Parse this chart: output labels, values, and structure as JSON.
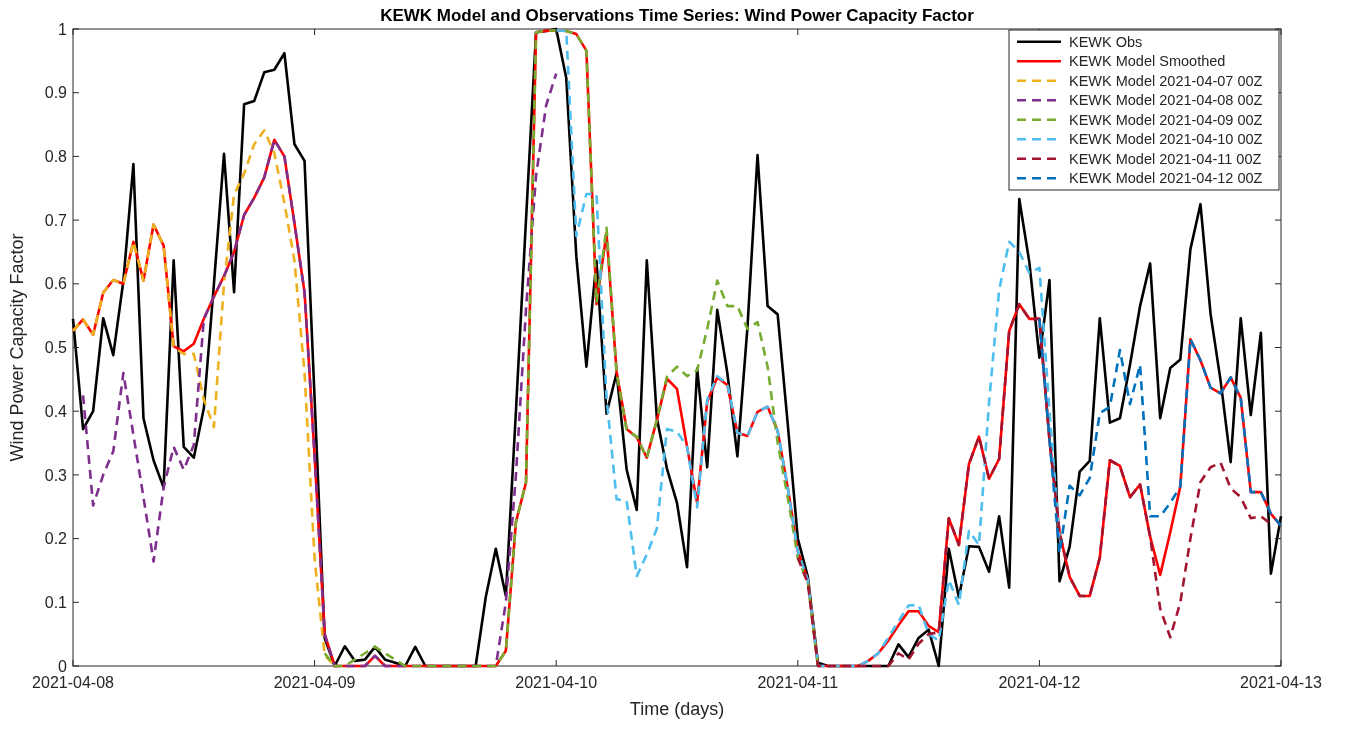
{
  "chart_data": {
    "type": "line",
    "title": "KEWK Model and Observations Time Series: Wind Power Capacity Factor",
    "xlabel": "Time (days)",
    "ylabel": "Wind Power Capacity Factor",
    "x": [
      "2021-04-08T00:00",
      "2021-04-08T01:00",
      "2021-04-08T02:00",
      "2021-04-08T03:00",
      "2021-04-08T04:00",
      "2021-04-08T05:00",
      "2021-04-08T06:00",
      "2021-04-08T07:00",
      "2021-04-08T08:00",
      "2021-04-08T09:00",
      "2021-04-08T10:00",
      "2021-04-08T11:00",
      "2021-04-08T12:00",
      "2021-04-08T13:00",
      "2021-04-08T14:00",
      "2021-04-08T15:00",
      "2021-04-08T16:00",
      "2021-04-08T17:00",
      "2021-04-08T18:00",
      "2021-04-08T19:00",
      "2021-04-08T20:00",
      "2021-04-08T21:00",
      "2021-04-08T22:00",
      "2021-04-08T23:00",
      "2021-04-09T00:00",
      "2021-04-09T01:00",
      "2021-04-09T02:00",
      "2021-04-09T03:00",
      "2021-04-09T04:00",
      "2021-04-09T05:00",
      "2021-04-09T06:00",
      "2021-04-09T07:00",
      "2021-04-09T08:00",
      "2021-04-09T09:00",
      "2021-04-09T10:00",
      "2021-04-09T11:00",
      "2021-04-09T12:00",
      "2021-04-09T13:00",
      "2021-04-09T14:00",
      "2021-04-09T15:00",
      "2021-04-09T16:00",
      "2021-04-09T17:00",
      "2021-04-09T18:00",
      "2021-04-09T19:00",
      "2021-04-09T20:00",
      "2021-04-09T21:00",
      "2021-04-09T22:00",
      "2021-04-09T23:00",
      "2021-04-10T00:00",
      "2021-04-10T01:00",
      "2021-04-10T02:00",
      "2021-04-10T03:00",
      "2021-04-10T04:00",
      "2021-04-10T05:00",
      "2021-04-10T06:00",
      "2021-04-10T07:00",
      "2021-04-10T08:00",
      "2021-04-10T09:00",
      "2021-04-10T10:00",
      "2021-04-10T11:00",
      "2021-04-10T12:00",
      "2021-04-10T13:00",
      "2021-04-10T14:00",
      "2021-04-10T15:00",
      "2021-04-10T16:00",
      "2021-04-10T17:00",
      "2021-04-10T18:00",
      "2021-04-10T19:00",
      "2021-04-10T20:00",
      "2021-04-10T21:00",
      "2021-04-10T22:00",
      "2021-04-10T23:00",
      "2021-04-11T00:00",
      "2021-04-11T01:00",
      "2021-04-11T02:00",
      "2021-04-11T03:00",
      "2021-04-11T04:00",
      "2021-04-11T05:00",
      "2021-04-11T06:00",
      "2021-04-11T07:00",
      "2021-04-11T08:00",
      "2021-04-11T09:00",
      "2021-04-11T10:00",
      "2021-04-11T11:00",
      "2021-04-11T12:00",
      "2021-04-11T13:00",
      "2021-04-11T14:00",
      "2021-04-11T15:00",
      "2021-04-11T16:00",
      "2021-04-11T17:00",
      "2021-04-11T18:00",
      "2021-04-11T19:00",
      "2021-04-11T20:00",
      "2021-04-11T21:00",
      "2021-04-11T22:00",
      "2021-04-11T23:00",
      "2021-04-12T00:00",
      "2021-04-12T01:00",
      "2021-04-12T02:00",
      "2021-04-12T03:00",
      "2021-04-12T04:00",
      "2021-04-12T05:00",
      "2021-04-12T06:00",
      "2021-04-12T07:00",
      "2021-04-12T08:00",
      "2021-04-12T09:00",
      "2021-04-12T10:00",
      "2021-04-12T11:00",
      "2021-04-12T12:00",
      "2021-04-12T13:00",
      "2021-04-12T14:00",
      "2021-04-12T15:00",
      "2021-04-12T16:00",
      "2021-04-12T17:00",
      "2021-04-12T18:00",
      "2021-04-12T19:00",
      "2021-04-12T20:00",
      "2021-04-12T21:00",
      "2021-04-12T22:00",
      "2021-04-12T23:00",
      "2021-04-13T00:00"
    ],
    "series": [
      {
        "name": "KEWK Obs",
        "color": "#000000",
        "line_style": "solid",
        "values": [
          0.545,
          0.372,
          0.4,
          0.546,
          0.488,
          0.604,
          0.788,
          0.389,
          0.323,
          0.28,
          0.637,
          0.344,
          0.327,
          0.405,
          0.6,
          0.804,
          0.587,
          0.882,
          0.887,
          0.932,
          0.936,
          0.962,
          0.819,
          0.793,
          0.42,
          0.044,
          0,
          0.031,
          0.008,
          0.01,
          0.03,
          0.01,
          0.005,
          0,
          0.03,
          0,
          0,
          0,
          0,
          0,
          0,
          0.108,
          0.184,
          0.11,
          0.4,
          0.7,
          0.995,
          0.997,
          1,
          0.923,
          0.643,
          0.47,
          0.636,
          0.396,
          0.46,
          0.308,
          0.245,
          0.637,
          0.389,
          0.31,
          0.256,
          0.155,
          0.467,
          0.312,
          0.559,
          0.46,
          0.329,
          0.532,
          0.802,
          0.565,
          0.552,
          0.38,
          0.2,
          0.14,
          0.005,
          0,
          0,
          0,
          0,
          0,
          0,
          0,
          0.034,
          0.014,
          0.044,
          0.057,
          0,
          0.184,
          0.108,
          0.188,
          0.187,
          0.148,
          0.235,
          0.123,
          0.733,
          0.634,
          0.484,
          0.606,
          0.133,
          0.187,
          0.305,
          0.322,
          0.546,
          0.382,
          0.389,
          0.473,
          0.565,
          0.632,
          0.389,
          0.468,
          0.481,
          0.654,
          0.725,
          0.553,
          0.448,
          0.32,
          0.546,
          0.394,
          0.523,
          0.145,
          0.235
        ]
      },
      {
        "name": "KEWK Model Smoothed",
        "color": "#ff0000",
        "line_style": "solid",
        "values": [
          0.526,
          0.544,
          0.52,
          0.586,
          0.606,
          0.6,
          0.666,
          0.605,
          0.693,
          0.66,
          0.502,
          0.494,
          0.506,
          0.545,
          0.58,
          0.612,
          0.65,
          0.708,
          0.735,
          0.767,
          0.826,
          0.8,
          0.695,
          0.587,
          0.33,
          0.05,
          0,
          0,
          0,
          0,
          0.016,
          0,
          0,
          0,
          0,
          0,
          0,
          0,
          0,
          0,
          0,
          0,
          0,
          0.024,
          0.226,
          0.288,
          0.995,
          0.997,
          0.998,
          0.997,
          0.992,
          0.966,
          0.568,
          0.679,
          0.462,
          0.372,
          0.359,
          0.327,
          0.386,
          0.451,
          0.435,
          0.344,
          0.256,
          0.415,
          0.453,
          0.441,
          0.366,
          0.361,
          0.399,
          0.407,
          0.369,
          0.28,
          0.18,
          0.135,
          0,
          0,
          0,
          0,
          0,
          0.008,
          0.02,
          0.04,
          0.064,
          0.086,
          0.086,
          0.063,
          0.053,
          0.232,
          0.19,
          0.317,
          0.36,
          0.294,
          0.325,
          0.526,
          0.568,
          0.545,
          0.545,
          0.355,
          0.21,
          0.14,
          0.11,
          0.11,
          0.17,
          0.323,
          0.314,
          0.265,
          0.285,
          0.203,
          0.143,
          0.21,
          0.282,
          0.513,
          0.48,
          0.437,
          0.428,
          0.453,
          0.421,
          0.273,
          0.273,
          0.239,
          0.22
        ]
      },
      {
        "name": "KEWK Model 2021-04-07 00Z",
        "color": "#edb120",
        "line_style": "dashed",
        "values": [
          0.526,
          0.544,
          0.52,
          0.586,
          0.606,
          0.6,
          0.666,
          0.605,
          0.693,
          0.66,
          0.5,
          0.49,
          0.49,
          0.418,
          0.375,
          0.6,
          0.74,
          0.773,
          0.819,
          0.841,
          0.805,
          0.727,
          0.636,
          0.46,
          0.168,
          0.017,
          0,
          null,
          null,
          null,
          null,
          null,
          null,
          null,
          null,
          null,
          null,
          null,
          null,
          null,
          null,
          null,
          null,
          null,
          null,
          null,
          null,
          null,
          null,
          null,
          null,
          null,
          null,
          null,
          null,
          null,
          null,
          null,
          null,
          null,
          null,
          null,
          null,
          null,
          null,
          null,
          null,
          null,
          null,
          null,
          null,
          null,
          null,
          null,
          null,
          null,
          null,
          null,
          null,
          null,
          null,
          null,
          null,
          null,
          null,
          null,
          null,
          null,
          null,
          null,
          null,
          null,
          null,
          null,
          null,
          null,
          null,
          null,
          null,
          null,
          null,
          null,
          null,
          null,
          null,
          null,
          null,
          null,
          null,
          null,
          null,
          null,
          null,
          null,
          null,
          null,
          null,
          null,
          null,
          null,
          null
        ]
      },
      {
        "name": "KEWK Model 2021-04-08 00Z",
        "color": "#7e2f8e",
        "line_style": "dashed",
        "values": [
          null,
          0.425,
          0.252,
          0.3,
          0.337,
          0.46,
          0.363,
          0.265,
          0.164,
          0.28,
          0.344,
          0.308,
          0.347,
          0.545,
          0.58,
          0.612,
          0.65,
          0.708,
          0.735,
          0.767,
          0.826,
          0.8,
          0.695,
          0.587,
          0.33,
          0.05,
          0,
          0,
          0,
          0,
          0.016,
          0,
          0,
          0,
          0,
          0,
          0,
          0,
          0,
          0,
          0,
          0,
          0,
          0.1,
          0.3,
          0.56,
          0.77,
          0.88,
          0.93,
          null,
          null,
          null,
          null,
          null,
          null,
          null,
          null,
          null,
          null,
          null,
          null,
          null,
          null,
          null,
          null,
          null,
          null,
          null,
          null,
          null,
          null,
          null,
          null,
          null,
          null,
          null,
          null,
          null,
          null,
          null,
          null,
          null,
          null,
          null,
          null,
          null,
          null,
          null,
          null,
          null,
          null,
          null,
          null,
          null,
          null,
          null,
          null,
          null,
          null,
          null,
          null,
          null,
          null,
          null,
          null,
          null,
          null,
          null,
          null,
          null,
          null,
          null,
          null,
          null,
          null,
          null,
          null,
          null,
          null,
          null,
          null
        ]
      },
      {
        "name": "KEWK Model 2021-04-09 00Z",
        "color": "#77ac30",
        "line_style": "dashed",
        "values": [
          null,
          null,
          null,
          null,
          null,
          null,
          null,
          null,
          null,
          null,
          null,
          null,
          null,
          null,
          null,
          null,
          null,
          null,
          null,
          null,
          null,
          null,
          null,
          null,
          null,
          0.02,
          0,
          0,
          0.01,
          0.02,
          0.03,
          0.02,
          0.01,
          0,
          0,
          0,
          0,
          0,
          0,
          0,
          0,
          0,
          0,
          0.024,
          0.226,
          0.288,
          0.995,
          0.997,
          0.998,
          0.997,
          0.992,
          0.966,
          0.57,
          0.688,
          0.46,
          0.37,
          0.36,
          0.327,
          0.386,
          0.454,
          0.47,
          0.455,
          0.464,
          0.529,
          0.605,
          0.565,
          0.565,
          0.529,
          0.54,
          0.47,
          0.35,
          0.265,
          0.17,
          0.13,
          0,
          null,
          null,
          null,
          null,
          null,
          null,
          null,
          null,
          null,
          null,
          null,
          null,
          null,
          null,
          null,
          null,
          null,
          null,
          null,
          null,
          null,
          null,
          null,
          null,
          null,
          null,
          null,
          null,
          null,
          null,
          null,
          null,
          null,
          null,
          null,
          null,
          null,
          null,
          null,
          null,
          null,
          null,
          null,
          null,
          null,
          null
        ]
      },
      {
        "name": "KEWK Model 2021-04-10 00Z",
        "color": "#4dbeee",
        "line_style": "dashed",
        "values": [
          null,
          null,
          null,
          null,
          null,
          null,
          null,
          null,
          null,
          null,
          null,
          null,
          null,
          null,
          null,
          null,
          null,
          null,
          null,
          null,
          null,
          null,
          null,
          null,
          null,
          null,
          null,
          null,
          null,
          null,
          null,
          null,
          null,
          null,
          null,
          null,
          null,
          null,
          null,
          null,
          null,
          null,
          null,
          null,
          null,
          null,
          null,
          null,
          0.998,
          0.997,
          0.675,
          0.741,
          0.741,
          0.421,
          0.262,
          0.259,
          0.141,
          0.175,
          0.216,
          0.372,
          0.368,
          0.344,
          0.249,
          0.418,
          0.455,
          0.443,
          0.366,
          0.361,
          0.399,
          0.407,
          0.369,
          0.28,
          0.18,
          0.135,
          0,
          0,
          0,
          0,
          0,
          0.008,
          0.02,
          0.045,
          0.07,
          0.095,
          0.096,
          0.05,
          0.04,
          0.135,
          0.096,
          0.212,
          0.19,
          0.414,
          0.59,
          0.666,
          0.65,
          0.617,
          0.625,
          0.4,
          0.2,
          null,
          null,
          null,
          null,
          null,
          null,
          null,
          null,
          null,
          null,
          null,
          null,
          null,
          null,
          null,
          null,
          null,
          null,
          null,
          null,
          null,
          null
        ]
      },
      {
        "name": "KEWK Model 2021-04-11 00Z",
        "color": "#a2142f",
        "line_style": "dashed",
        "values": [
          null,
          null,
          null,
          null,
          null,
          null,
          null,
          null,
          null,
          null,
          null,
          null,
          null,
          null,
          null,
          null,
          null,
          null,
          null,
          null,
          null,
          null,
          null,
          null,
          null,
          null,
          null,
          null,
          null,
          null,
          null,
          null,
          null,
          null,
          null,
          null,
          null,
          null,
          null,
          null,
          null,
          null,
          null,
          null,
          null,
          null,
          null,
          null,
          null,
          null,
          null,
          null,
          null,
          null,
          null,
          null,
          null,
          null,
          null,
          null,
          null,
          null,
          null,
          null,
          null,
          null,
          null,
          null,
          null,
          null,
          null,
          null,
          0.17,
          0.13,
          0,
          0,
          0,
          0,
          0,
          0,
          0,
          0,
          0.02,
          0.01,
          0.035,
          0.05,
          0.053,
          0.232,
          0.19,
          0.317,
          0.36,
          0.294,
          0.325,
          0.526,
          0.568,
          0.545,
          0.545,
          0.355,
          0.21,
          0.14,
          0.11,
          0.11,
          0.17,
          0.323,
          0.314,
          0.265,
          0.285,
          0.203,
          0.09,
          0.045,
          0.1,
          0.2,
          0.289,
          0.312,
          0.319,
          0.279,
          0.265,
          0.232,
          0.235,
          0.223,
          null
        ]
      },
      {
        "name": "KEWK Model 2021-04-12 00Z",
        "color": "#0072bd",
        "line_style": "dashed",
        "values": [
          null,
          null,
          null,
          null,
          null,
          null,
          null,
          null,
          null,
          null,
          null,
          null,
          null,
          null,
          null,
          null,
          null,
          null,
          null,
          null,
          null,
          null,
          null,
          null,
          null,
          null,
          null,
          null,
          null,
          null,
          null,
          null,
          null,
          null,
          null,
          null,
          null,
          null,
          null,
          null,
          null,
          null,
          null,
          null,
          null,
          null,
          null,
          null,
          null,
          null,
          null,
          null,
          null,
          null,
          null,
          null,
          null,
          null,
          null,
          null,
          null,
          null,
          null,
          null,
          null,
          null,
          null,
          null,
          null,
          null,
          null,
          null,
          null,
          null,
          null,
          null,
          null,
          null,
          null,
          null,
          null,
          null,
          null,
          null,
          null,
          null,
          null,
          null,
          null,
          null,
          null,
          null,
          null,
          null,
          null,
          null,
          0.545,
          0.355,
          0.177,
          0.283,
          0.268,
          0.295,
          0.397,
          0.407,
          0.496,
          0.411,
          0.473,
          0.235,
          0.235,
          0.256,
          0.282,
          0.513,
          0.48,
          0.437,
          0.428,
          0.453,
          0.421,
          0.273,
          0.273,
          0.239,
          0.22
        ]
      }
    ],
    "xlim": [
      "2021-04-08",
      "2021-04-13"
    ],
    "xticks": [
      "2021-04-08",
      "2021-04-09",
      "2021-04-10",
      "2021-04-11",
      "2021-04-12",
      "2021-04-13"
    ],
    "ylim": [
      0,
      1
    ],
    "yticks": [
      0,
      0.1,
      0.2,
      0.3,
      0.4,
      0.5,
      0.6,
      0.7,
      0.8,
      0.9,
      1
    ],
    "grid": false,
    "legend": "top right"
  }
}
